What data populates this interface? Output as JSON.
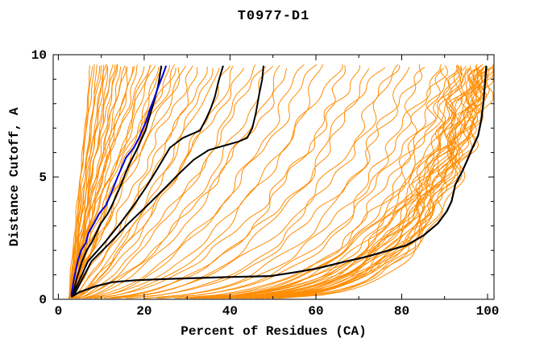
{
  "chart_data": {
    "type": "line",
    "title": "T0977-D1",
    "xlabel": "Percent of Residues (CA)",
    "ylabel": "Distance Cutoff, A",
    "xlim": [
      -1.2,
      101.5
    ],
    "ylim": [
      0,
      10
    ],
    "x_major_ticks": [
      0,
      20,
      40,
      60,
      80,
      100
    ],
    "x_tick_labels": [
      "0",
      "20",
      "40",
      "60",
      "80",
      "100"
    ],
    "x_minor_tick_step": 10,
    "y_major_ticks": [
      0,
      5,
      10
    ],
    "y_tick_labels": [
      "0",
      "5",
      "10"
    ],
    "y_minor_tick_step": 1,
    "grid": false,
    "legend": null,
    "frame_color": "#000000",
    "highlighted_series": [
      {
        "name": "model-black-1",
        "color": "#000000",
        "width": 2,
        "points": [
          [
            3.2,
            0.1
          ],
          [
            4.2,
            0.8
          ],
          [
            5.5,
            1.55
          ],
          [
            6.6,
            2.0
          ],
          [
            7.7,
            2.3
          ],
          [
            9.9,
            3.1
          ],
          [
            11.5,
            3.5
          ],
          [
            12.5,
            3.85
          ],
          [
            14.4,
            4.6
          ],
          [
            16.2,
            5.4
          ],
          [
            18.5,
            6.2
          ],
          [
            20.3,
            6.9
          ],
          [
            21.8,
            7.8
          ],
          [
            22.6,
            8.3
          ],
          [
            23.2,
            8.7
          ],
          [
            23.6,
            9.1
          ],
          [
            24.0,
            9.55
          ]
        ]
      },
      {
        "name": "model-black-2",
        "color": "#000000",
        "width": 2,
        "points": [
          [
            3.4,
            0.2
          ],
          [
            6.9,
            1.55
          ],
          [
            10.7,
            2.3
          ],
          [
            14.4,
            3.1
          ],
          [
            17.6,
            3.85
          ],
          [
            20.5,
            4.6
          ],
          [
            23.3,
            5.4
          ],
          [
            26.0,
            6.2
          ],
          [
            29.0,
            6.6
          ],
          [
            33.0,
            6.9
          ],
          [
            34.5,
            7.4
          ],
          [
            35.5,
            7.8
          ],
          [
            36.5,
            8.3
          ],
          [
            37.3,
            8.9
          ],
          [
            38.4,
            9.55
          ]
        ]
      },
      {
        "name": "model-black-3",
        "color": "#000000",
        "width": 2,
        "points": [
          [
            3.75,
            0.2
          ],
          [
            7.7,
            1.55
          ],
          [
            12.0,
            2.3
          ],
          [
            16.3,
            3.1
          ],
          [
            20.8,
            3.85
          ],
          [
            25.1,
            4.6
          ],
          [
            28.5,
            5.2
          ],
          [
            31.5,
            5.7
          ],
          [
            35.0,
            6.1
          ],
          [
            39.0,
            6.3
          ],
          [
            42.0,
            6.45
          ],
          [
            44.0,
            6.6
          ],
          [
            45.2,
            7.0
          ],
          [
            46.0,
            7.6
          ],
          [
            46.8,
            8.4
          ],
          [
            47.5,
            9.0
          ],
          [
            47.8,
            9.55
          ]
        ]
      },
      {
        "name": "model-black-best",
        "color": "#000000",
        "width": 2.2,
        "points": [
          [
            3.0,
            0.1
          ],
          [
            5.0,
            0.3
          ],
          [
            9.0,
            0.55
          ],
          [
            12.6,
            0.7
          ],
          [
            18.0,
            0.78
          ],
          [
            25.0,
            0.83
          ],
          [
            32.0,
            0.87
          ],
          [
            40.0,
            0.91
          ],
          [
            49.5,
            0.95
          ],
          [
            55.0,
            1.1
          ],
          [
            60.0,
            1.25
          ],
          [
            67.0,
            1.55
          ],
          [
            72.0,
            1.75
          ],
          [
            75.0,
            1.9
          ],
          [
            81.0,
            2.2
          ],
          [
            85.0,
            2.6
          ],
          [
            88.4,
            3.1
          ],
          [
            90.5,
            3.6
          ],
          [
            91.6,
            4.0
          ],
          [
            92.5,
            4.7
          ],
          [
            94.0,
            5.2
          ],
          [
            95.3,
            5.7
          ],
          [
            96.5,
            6.2
          ],
          [
            97.8,
            6.7
          ],
          [
            98.5,
            7.3
          ],
          [
            99.0,
            8.0
          ],
          [
            99.4,
            8.8
          ],
          [
            99.7,
            9.55
          ]
        ]
      },
      {
        "name": "model-blue",
        "color": "#0000dd",
        "width": 2,
        "points": [
          [
            3.0,
            0.15
          ],
          [
            3.6,
            0.8
          ],
          [
            4.5,
            1.55
          ],
          [
            5.3,
            2.0
          ],
          [
            6.4,
            2.3
          ],
          [
            7.0,
            2.7
          ],
          [
            8.3,
            3.1
          ],
          [
            9.5,
            3.5
          ],
          [
            11.1,
            3.85
          ],
          [
            12.0,
            4.2
          ],
          [
            12.9,
            4.6
          ],
          [
            13.8,
            5.0
          ],
          [
            14.8,
            5.4
          ],
          [
            15.8,
            5.8
          ],
          [
            17.6,
            6.2
          ],
          [
            18.8,
            6.6
          ],
          [
            19.5,
            6.9
          ],
          [
            20.5,
            7.3
          ],
          [
            21.4,
            7.8
          ],
          [
            22.3,
            8.2
          ],
          [
            23.3,
            8.7
          ],
          [
            24.2,
            9.1
          ],
          [
            25.1,
            9.55
          ]
        ]
      }
    ],
    "background_series": {
      "name": "server-models-orange",
      "color": "#ff8c00",
      "width": 1,
      "x_converge": 3,
      "y_top": 9.55,
      "wiggle": {
        "amp_low_q": 0.05,
        "amp_high_q": 0.03,
        "threshold_q": 35
      },
      "models": [
        [
          7.5,
          1.3
        ],
        [
          8,
          1.1
        ],
        [
          8.5,
          1.25
        ],
        [
          9,
          1.05
        ],
        [
          9.5,
          1.2
        ],
        [
          10,
          1.35
        ],
        [
          10.5,
          1.0
        ],
        [
          11,
          1.15
        ],
        [
          11.5,
          1.3
        ],
        [
          12,
          1.05
        ],
        [
          12.5,
          1.2
        ],
        [
          13,
          1.1
        ],
        [
          13.5,
          1.28
        ],
        [
          14,
          0.95
        ],
        [
          15,
          1.18
        ],
        [
          15.5,
          1.05
        ],
        [
          16,
          1.22
        ],
        [
          17,
          1.0
        ],
        [
          17.5,
          1.15
        ],
        [
          18,
          1.3
        ],
        [
          19,
          1.08
        ],
        [
          20,
          1.2
        ],
        [
          21,
          0.95
        ],
        [
          22,
          1.12
        ],
        [
          23,
          1.25
        ],
        [
          24,
          1.02
        ],
        [
          25,
          1.15
        ],
        [
          26,
          0.92
        ],
        [
          27,
          1.08
        ],
        [
          28,
          1.18
        ],
        [
          29,
          1.0
        ],
        [
          30,
          1.1
        ],
        [
          31.5,
          0.9
        ],
        [
          33,
          0.8
        ],
        [
          35,
          0.88
        ],
        [
          36,
          0.7
        ],
        [
          38,
          0.82
        ],
        [
          40,
          0.65
        ],
        [
          42,
          0.75
        ],
        [
          44,
          0.85
        ],
        [
          46,
          0.62
        ],
        [
          48,
          0.72
        ],
        [
          50,
          0.58
        ],
        [
          52,
          0.55
        ],
        [
          55,
          0.65
        ],
        [
          57,
          0.48
        ],
        [
          60,
          0.55
        ],
        [
          62,
          0.42
        ],
        [
          65,
          0.5
        ],
        [
          68,
          0.38
        ],
        [
          70,
          0.45
        ],
        [
          72,
          0.35
        ],
        [
          75,
          0.42
        ],
        [
          78,
          0.32
        ],
        [
          80,
          0.38
        ],
        [
          82,
          0.28
        ],
        [
          84,
          0.34
        ],
        [
          86,
          0.25
        ],
        [
          88,
          0.3
        ],
        [
          89,
          0.22
        ],
        [
          90,
          0.27
        ],
        [
          91,
          0.2
        ],
        [
          92,
          0.24
        ],
        [
          93,
          0.18
        ],
        [
          93.5,
          0.22
        ],
        [
          94,
          0.16
        ],
        [
          94.5,
          0.2
        ],
        [
          95,
          0.14
        ],
        [
          95.2,
          0.24
        ],
        [
          95.5,
          0.17
        ],
        [
          96,
          0.2
        ],
        [
          96.5,
          0.15
        ],
        [
          96.8,
          0.22
        ],
        [
          97,
          0.18
        ],
        [
          97.3,
          0.14
        ],
        [
          97.6,
          0.2
        ],
        [
          98,
          0.16
        ],
        [
          98.3,
          0.22
        ],
        [
          98.6,
          0.14
        ],
        [
          98.8,
          0.18
        ],
        [
          99,
          0.15
        ],
        [
          99.2,
          0.2
        ],
        [
          99.4,
          0.16
        ],
        [
          99.6,
          0.13
        ],
        [
          99.8,
          0.18
        ],
        [
          99.9,
          0.15
        ],
        [
          100,
          0.2
        ],
        [
          100.2,
          0.14
        ],
        [
          100.4,
          0.17
        ],
        [
          100.6,
          0.13
        ],
        [
          100.8,
          0.16
        ],
        [
          101,
          0.14
        ],
        [
          100.5,
          0.19
        ]
      ]
    }
  }
}
